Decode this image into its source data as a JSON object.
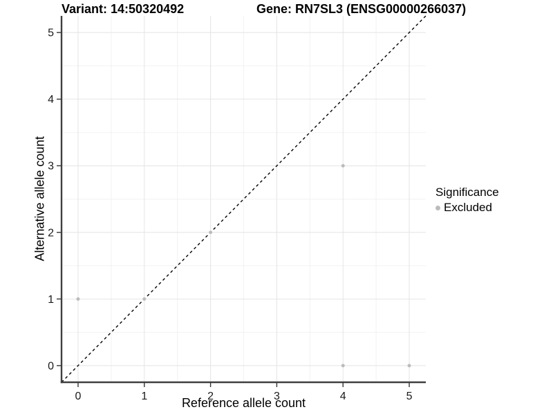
{
  "colors": {
    "background": "#ffffff",
    "grid_major": "#e4e4e4",
    "grid_minor": "#f2f2f2",
    "axis_line": "#3f3f3f",
    "tick_mark": "#333333",
    "tick_label": "#1a1a1a",
    "point": "#bcbcbc",
    "identity_line": "#000000"
  },
  "chart_data": {
    "type": "scatter",
    "title": "Variant: 14:50320492",
    "title_right": "Gene: RN7SL3 (ENSG00000266037)",
    "xlabel": "Reference allele count",
    "ylabel": "Alternative allele count",
    "xlim": [
      -0.25,
      5.25
    ],
    "ylim": [
      -0.25,
      5.25
    ],
    "xticks": [
      0,
      1,
      2,
      3,
      4,
      5
    ],
    "yticks": [
      0,
      1,
      2,
      3,
      4,
      5
    ],
    "grid": {
      "major": true,
      "minor": true
    },
    "identity_line": {
      "slope": 1,
      "intercept": 0,
      "style": "dashed",
      "color": "#000000"
    },
    "legend": {
      "title": "Significance",
      "position": "right",
      "items": [
        {
          "label": "Excluded",
          "color": "#bcbcbc"
        }
      ]
    },
    "series": [
      {
        "name": "Excluded",
        "color": "#bcbcbc",
        "points": [
          [
            0,
            1
          ],
          [
            1,
            1
          ],
          [
            2,
            2
          ],
          [
            4,
            0
          ],
          [
            4,
            3
          ],
          [
            5,
            0
          ]
        ]
      }
    ]
  }
}
